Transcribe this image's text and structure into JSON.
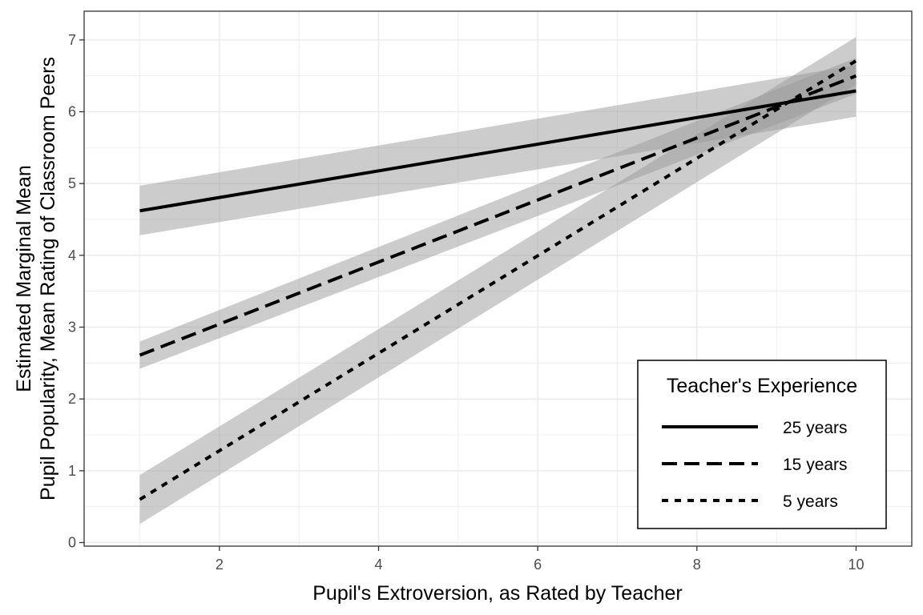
{
  "chart_data": {
    "type": "line",
    "xlabel": "Pupil's Extroversion, as Rated by Teacher",
    "ylabel_line1": "Estimated Marginal Mean",
    "ylabel_line2": "Pupil Popularity, Mean Rating of Classroom Peers",
    "xlim": [
      0.3,
      10.7
    ],
    "ylim": [
      -0.05,
      7.4
    ],
    "x_ticks": [
      2,
      4,
      6,
      8,
      10
    ],
    "x_tick_labels": [
      "2",
      "4",
      "6",
      "8",
      "10"
    ],
    "y_ticks": [
      0,
      1,
      2,
      3,
      4,
      5,
      6,
      7
    ],
    "y_tick_labels": [
      "0",
      "1",
      "2",
      "3",
      "4",
      "5",
      "6",
      "7"
    ],
    "grid": true,
    "legend": {
      "title": "Teacher's Experience",
      "placement": "bottom-right"
    },
    "series": [
      {
        "name": "25 years",
        "linetype": "solid",
        "x": [
          1,
          10
        ],
        "y": [
          4.62,
          6.29
        ],
        "ci_lower": [
          4.28,
          5.93
        ],
        "ci_upper": [
          4.97,
          6.65
        ]
      },
      {
        "name": "15 years",
        "linetype": "dashed",
        "x": [
          1,
          10
        ],
        "y": [
          2.61,
          6.5
        ],
        "ci_lower": [
          2.42,
          6.25
        ],
        "ci_upper": [
          2.8,
          6.75
        ]
      },
      {
        "name": "5 years",
        "linetype": "dotted",
        "x": [
          1,
          10
        ],
        "y": [
          0.6,
          6.71
        ],
        "ci_lower": [
          0.26,
          6.38
        ],
        "ci_upper": [
          0.94,
          7.04
        ]
      }
    ],
    "colors": {
      "line": "#000000",
      "ribbon": "#999999",
      "grid": "#ebebeb",
      "panel_border": "#333333"
    }
  }
}
